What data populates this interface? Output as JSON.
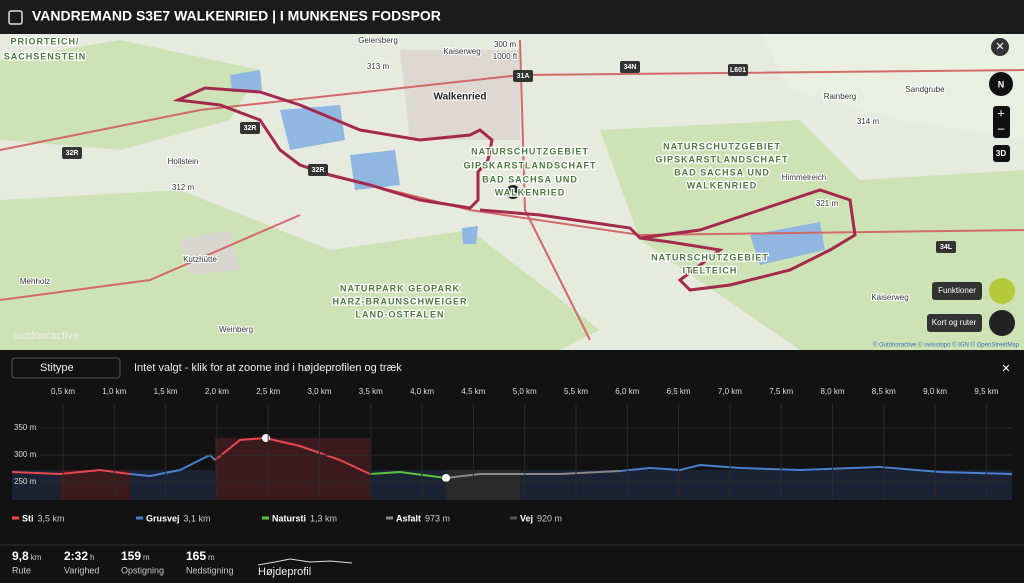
{
  "header": {
    "title": "VANDREMAND S3E7 WALKENRIED | I MUNKENES FODSPOR"
  },
  "map": {
    "labels": [
      "PRIORTEICH/",
      "SACHSENSTEIN",
      "Geiersberg",
      "313 m",
      "Kaiserweg",
      "300 m",
      "1000 ft",
      "31A",
      "34N",
      "L601",
      "Rainberg",
      "Sandgrube",
      "314 m",
      "Walkenried",
      "32R",
      "32R",
      "32R",
      "Hollstein",
      "312 m",
      "NATURSCHUTZGEBIET",
      "GIPSKARSTLANDSCHAFT",
      "BAD SACHSA UND",
      "WALKENRIED",
      "NATURSCHUTZGEBIET",
      "GIPSKARSTLANDSCHAFT",
      "BAD SACHSA UND",
      "WALKENRIED",
      "Himmelreich",
      "321 m",
      "NATURSCHUTZGEBIET",
      "ITELTEICH",
      "34L",
      "Kaiserweg",
      "Kutzhütte",
      "NATURPARK GEOPARK",
      "HARZ-BRAUNSCHWEIGER",
      "LAND-OSTFALEN",
      "Mehholz",
      "Weinberg",
      "outdooractive"
    ],
    "start_marker": "S",
    "compass": "N",
    "zoom_in": "+",
    "zoom_out": "−",
    "view_3d": "3D",
    "functions_button": "Funktioner",
    "maps_button": "Kort og ruter",
    "attribution": "© Outdooractive © swisstopo © IGN © OpenStreetMap"
  },
  "profile": {
    "filter": "Stitype",
    "hint": "Intet valgt - klik for at zoome ind i højdeprofilen og træk",
    "xticks": [
      "0,5 km",
      "1,0 km",
      "1,5 km",
      "2,0 km",
      "2,5 km",
      "3,0 km",
      "3,5 km",
      "4,0 km",
      "4,5 km",
      "5,0 km",
      "5,5 km",
      "6,0 km",
      "6,5 km",
      "7,0 km",
      "7,5 km",
      "8,0 km",
      "8,5 km",
      "9,0 km",
      "9,5 km"
    ],
    "yticks": [
      "350 m",
      "300 m",
      "250 m"
    ],
    "legend": [
      {
        "name": "Sti",
        "value": "3,5 km",
        "color": "#e8474f"
      },
      {
        "name": "Grusvej",
        "value": "3,1 km",
        "color": "#4a7fd0"
      },
      {
        "name": "Natursti",
        "value": "1,3 km",
        "color": "#5cc43c"
      },
      {
        "name": "Asfalt",
        "value": "973 m",
        "color": "#888888"
      },
      {
        "name": "Vej",
        "value": "920 m",
        "color": "#555555"
      }
    ]
  },
  "stats": [
    {
      "value": "9,8",
      "unit": "km",
      "label": "Rute"
    },
    {
      "value": "2:32",
      "unit": "h",
      "label": "Varighed"
    },
    {
      "value": "159",
      "unit": "m",
      "label": "Opstigning"
    },
    {
      "value": "165",
      "unit": "m",
      "label": "Nedstigning"
    }
  ],
  "profile_toggle": "Højdeprofil"
}
